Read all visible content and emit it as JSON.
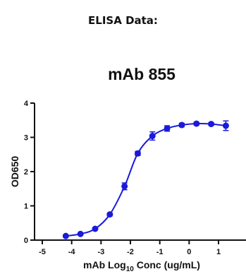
{
  "heading": "ELISA Data:",
  "chart_data": {
    "type": "line",
    "title": "mAb 855",
    "xlabel": "mAb Log10 Conc (ug/mL)",
    "xlabel_parts": {
      "before": "mAb Log",
      "subscript": "10",
      "after": " Conc (ug/mL)"
    },
    "ylabel": "OD650",
    "xlim": [
      -5,
      1.3
    ],
    "ylim": [
      0,
      4
    ],
    "xticks": [
      -5,
      -4,
      -3,
      -2,
      -1,
      0,
      1
    ],
    "yticks": [
      0,
      1,
      2,
      3,
      4
    ],
    "grid": false,
    "legend": "none",
    "series": [
      {
        "color": "#1a1adb",
        "x": [
          -4.2,
          -3.7,
          -3.2,
          -2.7,
          -2.2,
          -1.75,
          -1.25,
          -0.75,
          -0.25,
          0.25,
          0.75,
          1.25
        ],
        "y": [
          0.12,
          0.18,
          0.33,
          0.75,
          1.57,
          2.53,
          3.04,
          3.26,
          3.36,
          3.4,
          3.39,
          3.34
        ],
        "err": [
          0.02,
          0.02,
          0.03,
          0.04,
          0.1,
          0.06,
          0.12,
          0.08,
          0.05,
          0.04,
          0.04,
          0.14
        ]
      }
    ]
  }
}
